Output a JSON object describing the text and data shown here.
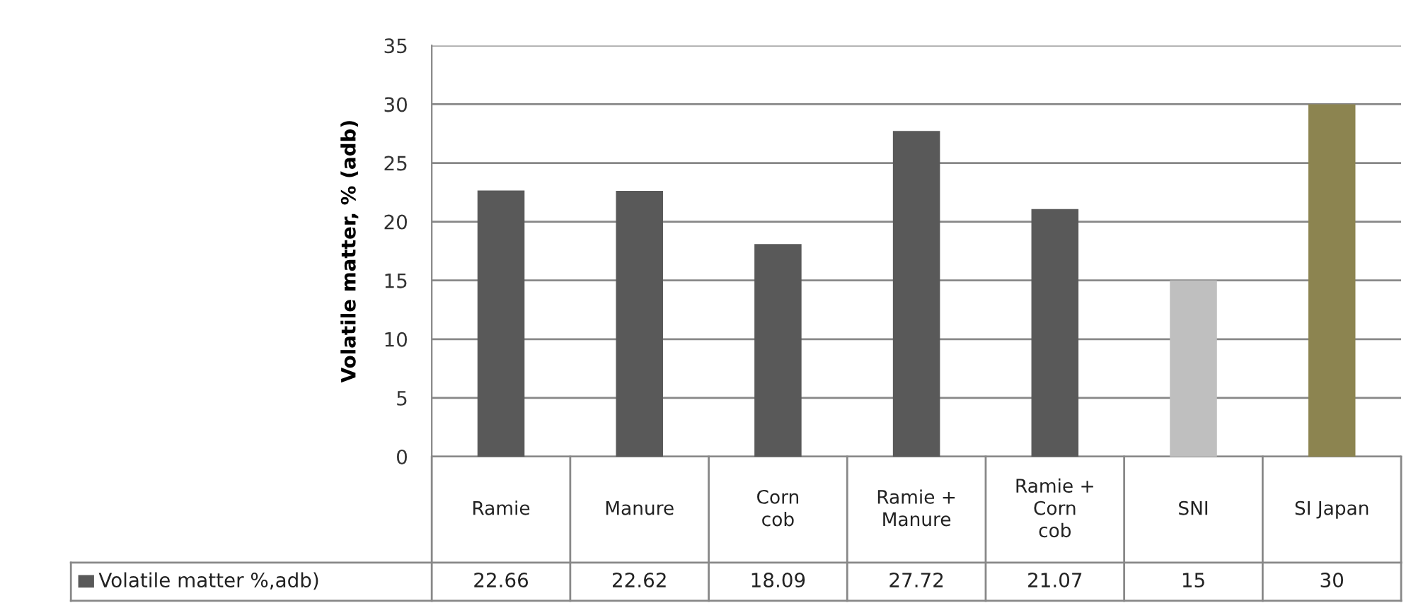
{
  "chart_data": {
    "type": "bar",
    "ylabel": "Volatile matter, % (adb)",
    "categories": [
      "Ramie",
      "Manure",
      "Corn\ncob",
      "Ramie +\nManure",
      "Ramie +\nCorn\ncob",
      "SNI",
      "SI Japan"
    ],
    "series": [
      {
        "name": "Volatile matter %,adb)",
        "color": "#595959",
        "colors": [
          "#595959",
          "#595959",
          "#595959",
          "#595959",
          "#595959",
          "#bfbfbf",
          "#8c8450"
        ],
        "values": [
          22.66,
          22.62,
          18.09,
          27.72,
          21.07,
          15,
          30
        ]
      }
    ],
    "ylim": [
      0,
      35
    ],
    "yticks": [
      0,
      5,
      10,
      15,
      20,
      25,
      30,
      35
    ],
    "grid": "y",
    "data_labels": true,
    "legend": "bottom"
  }
}
